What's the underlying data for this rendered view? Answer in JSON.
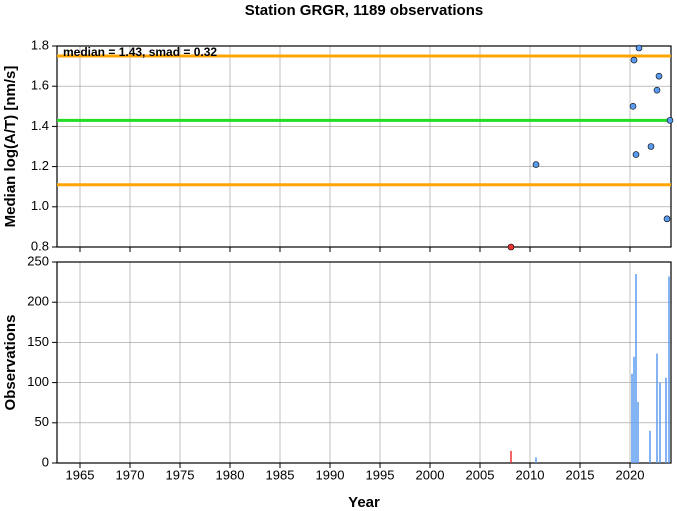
{
  "chart_data": [
    {
      "type": "scatter",
      "title": "Station GRGR, 1189 observations",
      "ylabel": "Median log(A/T) [nm/s]",
      "annotation": "median = 1.43, smad = 0.32",
      "xlim": [
        1962.7,
        2024.1
      ],
      "xticks": [
        1965,
        1970,
        1975,
        1980,
        1985,
        1990,
        1995,
        2000,
        2005,
        2010,
        2015,
        2020
      ],
      "ylim": [
        0.8,
        1.8
      ],
      "yticks": [
        0.8,
        {
          "value": 1.0,
          "label": "1.0"
        },
        1.2,
        1.4,
        1.6,
        1.8
      ],
      "grid": true,
      "hlines": [
        {
          "value": 1.43,
          "color": "#22dd22"
        },
        {
          "value": 1.75,
          "color": "#ffa500"
        },
        {
          "value": 1.11,
          "color": "#ffa500"
        }
      ],
      "series": [
        {
          "color": "#ee3333",
          "x": [
            2008.1
          ],
          "values": [
            0.8
          ]
        },
        {
          "color": "#5b9bef",
          "x": [
            2010.6,
            2020.3,
            2020.4,
            2020.6,
            2020.9,
            2022.1,
            2022.7,
            2022.9,
            2023.7,
            2024.0
          ],
          "values": [
            1.21,
            1.5,
            1.73,
            1.26,
            1.79,
            1.3,
            1.58,
            1.65,
            0.94,
            1.43
          ]
        }
      ]
    },
    {
      "type": "bar",
      "xlabel": "Year",
      "ylabel": "Observations",
      "xlim": [
        1962.7,
        2024.1
      ],
      "xticks": [
        1965,
        1970,
        1975,
        1980,
        1985,
        1990,
        1995,
        2000,
        2005,
        2010,
        2015,
        2020
      ],
      "ylim": [
        0,
        250
      ],
      "yticks": [
        0,
        50,
        100,
        150,
        200,
        250
      ],
      "grid": true,
      "series": [
        {
          "color": "#ee3333",
          "x": [
            2008.1
          ],
          "values": [
            15
          ]
        },
        {
          "color": "#5b9bef",
          "x": [
            2010.6,
            2020.2,
            2020.4,
            2020.6,
            2020.8,
            2022.0,
            2022.7,
            2023.0,
            2023.6,
            2023.9
          ],
          "values": [
            7,
            111,
            132,
            235,
            76,
            40,
            136,
            100,
            106,
            232
          ]
        }
      ]
    }
  ]
}
